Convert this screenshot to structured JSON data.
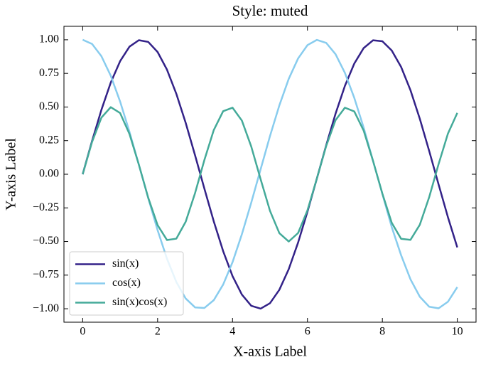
{
  "chart_data": {
    "type": "line",
    "title": "Style: muted",
    "x_label": "X-axis Label",
    "y_label": "Y-axis Label",
    "x": [
      0,
      0.25,
      0.5,
      0.75,
      1,
      1.25,
      1.5,
      1.75,
      2,
      2.25,
      2.5,
      2.75,
      3,
      3.25,
      3.5,
      3.75,
      4,
      4.25,
      4.5,
      4.75,
      5,
      5.25,
      5.5,
      5.75,
      6,
      6.25,
      6.5,
      6.75,
      7,
      7.25,
      7.5,
      7.75,
      8,
      8.25,
      8.5,
      8.75,
      9,
      9.25,
      9.5,
      9.75,
      10
    ],
    "series": [
      {
        "name": "sin(x)",
        "color": "#332288",
        "values": [
          0,
          0.247,
          0.479,
          0.682,
          0.841,
          0.949,
          0.997,
          0.984,
          0.909,
          0.778,
          0.598,
          0.382,
          0.141,
          -0.108,
          -0.351,
          -0.572,
          -0.757,
          -0.895,
          -0.978,
          -0.999,
          -0.959,
          -0.859,
          -0.706,
          -0.508,
          -0.279,
          -0.033,
          0.215,
          0.45,
          0.657,
          0.823,
          0.938,
          0.996,
          0.989,
          0.92,
          0.798,
          0.625,
          0.412,
          0.173,
          -0.075,
          -0.319,
          -0.544
        ]
      },
      {
        "name": "cos(x)",
        "color": "#88ccee",
        "values": [
          1,
          0.969,
          0.878,
          0.732,
          0.54,
          0.315,
          0.071,
          -0.178,
          -0.416,
          -0.628,
          -0.801,
          -0.924,
          -0.99,
          -0.994,
          -0.936,
          -0.82,
          -0.654,
          -0.446,
          -0.211,
          0.037,
          0.284,
          0.512,
          0.709,
          0.861,
          0.96,
          0.999,
          0.977,
          0.893,
          0.754,
          0.568,
          0.347,
          0.1,
          -0.146,
          -0.393,
          -0.602,
          -0.781,
          -0.911,
          -0.985,
          -0.997,
          -0.948,
          -0.839
        ]
      },
      {
        "name": "sin(x)cos(x)",
        "color": "#44aa99",
        "values": [
          0,
          0.24,
          0.421,
          0.499,
          0.455,
          0.299,
          0.071,
          -0.175,
          -0.378,
          -0.489,
          -0.479,
          -0.353,
          -0.14,
          0.107,
          0.329,
          0.469,
          0.495,
          0.399,
          0.206,
          -0.037,
          -0.272,
          -0.438,
          -0.5,
          -0.437,
          -0.268,
          -0.033,
          0.21,
          0.402,
          0.495,
          0.467,
          0.325,
          0.1,
          -0.144,
          -0.361,
          -0.48,
          -0.488,
          -0.375,
          -0.17,
          0.075,
          0.302,
          0.456
        ]
      }
    ],
    "xlim": [
      -0.5,
      10.5
    ],
    "ylim": [
      -1.1,
      1.1
    ],
    "xticks": [
      0,
      2,
      4,
      6,
      8,
      10
    ],
    "yticks": [
      {
        "value": -1,
        "label": "−1.00"
      },
      {
        "value": -0.75,
        "label": "−0.75"
      },
      {
        "value": -0.5,
        "label": "−0.50"
      },
      {
        "value": -0.25,
        "label": "−0.25"
      },
      {
        "value": 0,
        "label": "0.00"
      },
      {
        "value": 0.25,
        "label": "0.25"
      },
      {
        "value": 0.5,
        "label": "0.50"
      },
      {
        "value": 0.75,
        "label": "0.75"
      },
      {
        "value": 1,
        "label": "1.00"
      }
    ],
    "legend": "lower left"
  }
}
